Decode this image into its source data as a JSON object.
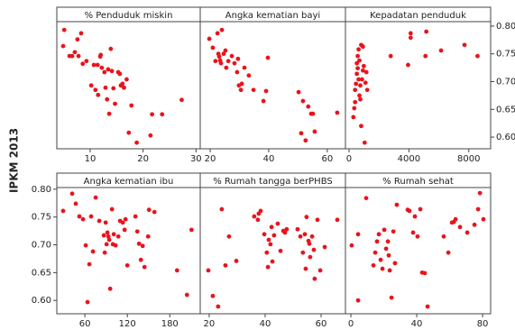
{
  "ylabel": "IPKM 2013",
  "chart_data": [
    {
      "type": "scatter",
      "title": "% Penduduk miskin",
      "color": "#e8141c",
      "xlim": [
        3.7,
        30.8
      ],
      "xticks": [
        10,
        20,
        30
      ],
      "ylim": [
        0.579,
        0.808
      ],
      "x": [
        4.9,
        5.1,
        6.1,
        6.6,
        7.1,
        7.6,
        7.8,
        8.3,
        8.6,
        9.3,
        10.2,
        10.7,
        11.0,
        11.4,
        11.5,
        11.9,
        12.0,
        12.2,
        12.7,
        12.9,
        13.2,
        13.4,
        13.6,
        13.9,
        14.1,
        14.4,
        14.7,
        15.3,
        15.6,
        15.8,
        16.1,
        16.4,
        16.9,
        17.3,
        17.8,
        18.8,
        21.4,
        21.7,
        23.6,
        27.3
      ],
      "y": [
        0.764,
        0.793,
        0.746,
        0.746,
        0.753,
        0.776,
        0.746,
        0.787,
        0.732,
        0.737,
        0.693,
        0.73,
        0.685,
        0.73,
        0.676,
        0.745,
        0.748,
        0.725,
        0.717,
        0.689,
        0.668,
        0.722,
        0.642,
        0.759,
        0.719,
        0.688,
        0.66,
        0.717,
        0.714,
        0.693,
        0.696,
        0.689,
        0.704,
        0.608,
        0.657,
        0.59,
        0.603,
        0.641,
        0.641,
        0.667
      ]
    },
    {
      "type": "scatter",
      "title": "Angka kematian bayi",
      "color": "#e8141c",
      "xlim": [
        16.6,
        66.2
      ],
      "xticks": [
        20,
        40,
        60
      ],
      "ylim": [
        0.579,
        0.808
      ],
      "x": [
        19.7,
        20.9,
        21.8,
        22.5,
        22.8,
        23.1,
        23.4,
        23.7,
        24.0,
        24.6,
        25.2,
        25.5,
        26.2,
        27.4,
        28.3,
        29.2,
        29.5,
        29.8,
        30.5,
        30.8,
        31.7,
        33.2,
        34.8,
        38.2,
        39.1,
        39.7,
        50.2,
        51.1,
        51.7,
        52.6,
        53.5,
        54.5,
        55.1,
        55.7,
        63.4
      ],
      "y": [
        0.777,
        0.761,
        0.737,
        0.787,
        0.75,
        0.745,
        0.738,
        0.733,
        0.793,
        0.75,
        0.756,
        0.725,
        0.737,
        0.746,
        0.733,
        0.717,
        0.741,
        0.693,
        0.685,
        0.696,
        0.725,
        0.711,
        0.685,
        0.665,
        0.683,
        0.743,
        0.681,
        0.607,
        0.665,
        0.594,
        0.655,
        0.642,
        0.642,
        0.61,
        0.644
      ]
    },
    {
      "type": "scatter",
      "title": "Kepadatan penduduk",
      "color": "#e8141c",
      "xlim": [
        -240,
        9460
      ],
      "xticks": [
        0,
        4000,
        8000
      ],
      "ylim": [
        0.579,
        0.808
      ],
      "yticks": [
        {
          "value": 0.6,
          "label": "0.60"
        },
        0.65,
        {
          "value": 0.7,
          "label": "0.70"
        },
        0.75,
        {
          "value": 0.8,
          "label": "0.80"
        }
      ],
      "x": [
        290,
        348,
        406,
        406,
        464,
        522,
        522,
        580,
        580,
        638,
        638,
        696,
        696,
        754,
        754,
        812,
        812,
        870,
        928,
        928,
        986,
        1044,
        1102,
        1160,
        1218,
        2784,
        3944,
        4118,
        4118,
        5104,
        5162,
        6148,
        7714,
        8584
      ],
      "y": [
        0.636,
        0.652,
        0.663,
        0.685,
        0.696,
        0.714,
        0.733,
        0.724,
        0.746,
        0.704,
        0.758,
        0.675,
        0.738,
        0.693,
        0.668,
        0.766,
        0.62,
        0.704,
        0.72,
        0.763,
        0.728,
        0.59,
        0.698,
        0.717,
        0.685,
        0.746,
        0.73,
        0.779,
        0.787,
        0.746,
        0.79,
        0.756,
        0.766,
        0.746
      ]
    },
    {
      "type": "scatter",
      "title": "Angka kematian ibu",
      "color": "#e8141c",
      "xlim": [
        20.4,
        223
      ],
      "xticks": [
        60,
        120,
        180
      ],
      "ylim": [
        0.576,
        0.803
      ],
      "yticks": [
        {
          "value": 0.6,
          "label": "0.60"
        },
        0.65,
        {
          "value": 0.7,
          "label": "0.70"
        },
        0.75,
        {
          "value": 0.8,
          "label": "0.80"
        }
      ],
      "x": [
        29.3,
        42.1,
        47.2,
        52.3,
        57.4,
        61.3,
        63.8,
        66.4,
        68.9,
        71.5,
        75.3,
        80.4,
        86.8,
        88.1,
        89.4,
        90.7,
        91.9,
        93.2,
        94.5,
        95.8,
        98.3,
        99.6,
        100.9,
        103.4,
        107.3,
        109.8,
        113.6,
        116.2,
        117.5,
        120.0,
        131.5,
        134.1,
        136.6,
        139.2,
        141.7,
        144.3,
        149.4,
        150.7,
        158.3,
        190.3,
        204.3,
        210.7
      ],
      "y": [
        0.761,
        0.792,
        0.774,
        0.751,
        0.746,
        0.699,
        0.597,
        0.665,
        0.751,
        0.688,
        0.785,
        0.743,
        0.717,
        0.686,
        0.74,
        0.701,
        0.722,
        0.715,
        0.709,
        0.621,
        0.764,
        0.701,
        0.719,
        0.699,
        0.715,
        0.743,
        0.74,
        0.727,
        0.746,
        0.663,
        0.751,
        0.724,
        0.702,
        0.673,
        0.698,
        0.66,
        0.715,
        0.763,
        0.759,
        0.654,
        0.61,
        0.727
      ]
    },
    {
      "type": "scatter",
      "title": "% Rumah tangga berPHBS",
      "color": "#e8141c",
      "xlim": [
        16.8,
        68.7
      ],
      "xticks": [
        20,
        40,
        60
      ],
      "ylim": [
        0.576,
        0.803
      ],
      "x": [
        19.7,
        21.3,
        23.2,
        24.5,
        25.8,
        27.1,
        29.7,
        36.1,
        37.4,
        37.7,
        38.4,
        39.7,
        40.6,
        41.0,
        41.3,
        41.9,
        42.3,
        42.6,
        43.2,
        44.5,
        45.5,
        46.5,
        47.1,
        47.7,
        51.6,
        52.6,
        53.5,
        54.2,
        54.5,
        54.8,
        55.5,
        55.8,
        56.1,
        56.8,
        57.4,
        57.7,
        58.7,
        59.7,
        61.3,
        65.8
      ],
      "y": [
        0.654,
        0.608,
        0.589,
        0.764,
        0.663,
        0.715,
        0.671,
        0.751,
        0.745,
        0.756,
        0.761,
        0.719,
        0.686,
        0.66,
        0.709,
        0.701,
        0.732,
        0.67,
        0.717,
        0.738,
        0.689,
        0.725,
        0.722,
        0.728,
        0.728,
        0.715,
        0.686,
        0.719,
        0.657,
        0.75,
        0.707,
        0.702,
        0.678,
        0.715,
        0.691,
        0.639,
        0.745,
        0.654,
        0.696,
        0.745
      ]
    },
    {
      "type": "scatter",
      "title": "% Rumah sehat",
      "color": "#e8141c",
      "xlim": [
        -3.3,
        84.9
      ],
      "xticks": [
        0,
        40,
        80
      ],
      "ylim": [
        0.576,
        0.803
      ],
      "x": [
        0.5,
        4.4,
        4.4,
        9.3,
        13.7,
        14.8,
        15.9,
        17.0,
        18.1,
        19.2,
        20.3,
        21.4,
        22.5,
        23.0,
        23.6,
        24.7,
        25.8,
        26.8,
        27.9,
        34.5,
        35.6,
        37.8,
        38.9,
        40.5,
        42.2,
        43.3,
        44.9,
        46.6,
        56.4,
        59.2,
        61.4,
        62.5,
        63.6,
        66.3,
        70.7,
        75.1,
        77.3,
        78.4,
        80.5
      ],
      "y": [
        0.699,
        0.6,
        0.719,
        0.784,
        0.663,
        0.686,
        0.706,
        0.719,
        0.673,
        0.657,
        0.727,
        0.693,
        0.706,
        0.681,
        0.654,
        0.605,
        0.724,
        0.667,
        0.772,
        0.763,
        0.761,
        0.722,
        0.751,
        0.715,
        0.764,
        0.65,
        0.649,
        0.589,
        0.715,
        0.686,
        0.74,
        0.741,
        0.746,
        0.732,
        0.722,
        0.736,
        0.764,
        0.793,
        0.746
      ]
    }
  ]
}
